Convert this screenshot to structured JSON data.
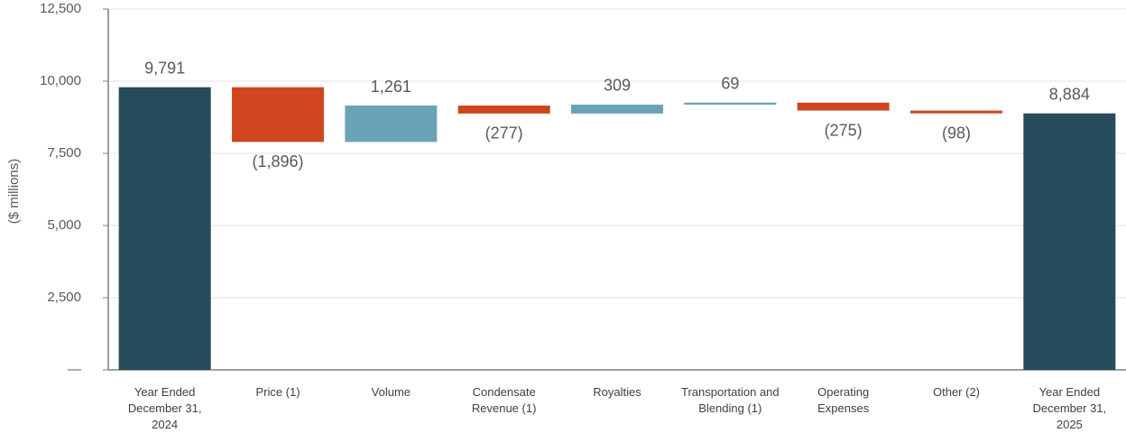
{
  "chart_data": {
    "type": "waterfall",
    "y_label": "($ millions)",
    "categories": [
      "Year Ended December 31, 2024",
      "Price (1)",
      "Volume",
      "Condensate Revenue (1)",
      "Royalties",
      "Transportation and Blending (1)",
      "Operating Expenses",
      "Other (2)",
      "Year Ended December 31, 2025"
    ],
    "values": [
      9791,
      -1896,
      1261,
      -277,
      309,
      69,
      -275,
      -98,
      8884
    ],
    "value_labels": [
      "9,791",
      "(1,896)",
      "1,261",
      "(277)",
      "309",
      "69",
      "(275)",
      "(98)",
      "8,884"
    ],
    "measure": [
      "absolute",
      "relative",
      "relative",
      "relative",
      "relative",
      "relative",
      "relative",
      "relative",
      "total"
    ],
    "total_color": "#264b5a",
    "increase_color": "#6aa3b8",
    "decrease_color": "#cf4520",
    "ylim": [
      0,
      12500
    ],
    "yticks": [
      {
        "value": 0,
        "label": "—"
      },
      {
        "value": 2500,
        "label": "2,500"
      },
      {
        "value": 5000,
        "label": "5,000"
      },
      {
        "value": 7500,
        "label": "7,500"
      },
      {
        "value": 10000,
        "label": "10,000"
      },
      {
        "value": 12500,
        "label": "12,500"
      }
    ],
    "grid": true
  }
}
